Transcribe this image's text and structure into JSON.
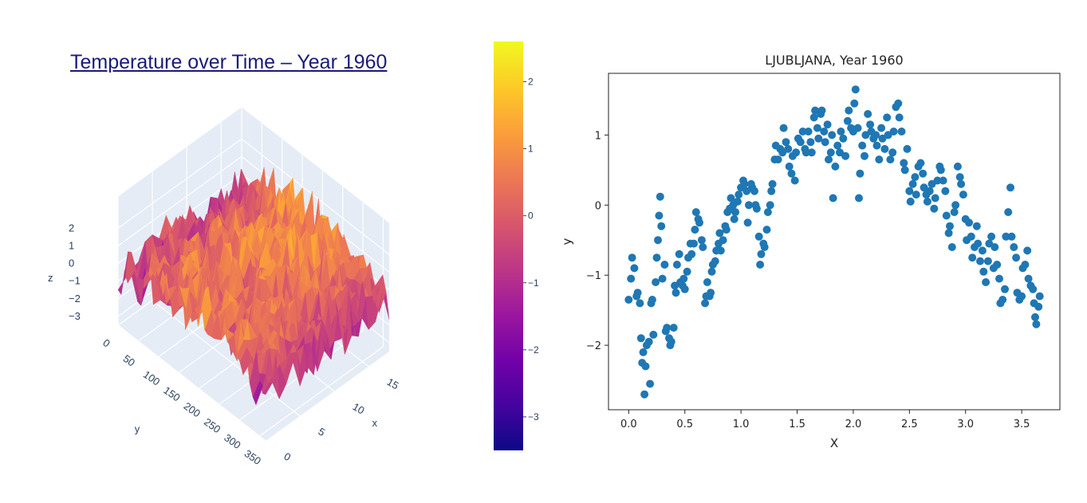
{
  "chart_data": [
    {
      "type": "surface",
      "title": "Temperature over Time – Year 1960",
      "axis_labels": {
        "x": "x",
        "y": "y",
        "z": "z"
      },
      "x_ticks": [
        "0",
        "5",
        "10",
        "15"
      ],
      "y_ticks": [
        "0",
        "50",
        "100",
        "150",
        "200",
        "250",
        "300",
        "350"
      ],
      "z_ticks": [
        "2",
        "1",
        "0",
        "−1",
        "−2",
        "−3"
      ],
      "x_range": [
        0,
        18
      ],
      "y_range": [
        0,
        365
      ],
      "z_range": [
        -3.5,
        2.6
      ],
      "colorscale": "plasma",
      "colors": {
        "plane": "#e5ecf6",
        "grid": "#ffffff"
      }
    },
    {
      "type": "colorbar",
      "range": [
        -3.5,
        2.6
      ],
      "ticks": [
        2,
        1,
        0,
        -1,
        -2,
        -3
      ],
      "tick_labels": [
        "2",
        "1",
        "0",
        "−1",
        "−2",
        "−3"
      ],
      "colorscale": [
        "#0d0887",
        "#46039f",
        "#7201a8",
        "#9c179e",
        "#bd3786",
        "#d8576b",
        "#ed7953",
        "#fb9f3a",
        "#fdca26",
        "#f0f921"
      ]
    },
    {
      "type": "scatter",
      "title": "LJUBLJANA, Year 1960",
      "xlabel": "X",
      "ylabel": "y",
      "xlim": [
        -0.18,
        3.84
      ],
      "ylim": [
        -2.92,
        1.88
      ],
      "x_ticks": [
        0.0,
        0.5,
        1.0,
        1.5,
        2.0,
        2.5,
        3.0,
        3.5
      ],
      "x_tick_labels": [
        "0.0",
        "0.5",
        "1.0",
        "1.5",
        "2.0",
        "2.5",
        "3.0",
        "3.5"
      ],
      "y_ticks": [
        1,
        0,
        -1,
        -2
      ],
      "y_tick_labels": [
        "1",
        "0",
        "−1",
        "−2"
      ],
      "point_color": "#1f77b4",
      "points": [
        [
          0.0,
          -1.35
        ],
        [
          0.02,
          -1.05
        ],
        [
          0.03,
          -0.75
        ],
        [
          0.05,
          -0.9
        ],
        [
          0.07,
          -1.3
        ],
        [
          0.08,
          -1.25
        ],
        [
          0.1,
          -1.4
        ],
        [
          0.11,
          -1.9
        ],
        [
          0.12,
          -2.25
        ],
        [
          0.13,
          -2.1
        ],
        [
          0.14,
          -2.7
        ],
        [
          0.15,
          -2.3
        ],
        [
          0.16,
          -2.0
        ],
        [
          0.18,
          -1.95
        ],
        [
          0.19,
          -2.55
        ],
        [
          0.2,
          -1.4
        ],
        [
          0.21,
          -1.35
        ],
        [
          0.22,
          -1.85
        ],
        [
          0.24,
          -1.1
        ],
        [
          0.25,
          -0.75
        ],
        [
          0.26,
          -0.5
        ],
        [
          0.27,
          -0.15
        ],
        [
          0.28,
          0.12
        ],
        [
          0.29,
          -0.3
        ],
        [
          0.3,
          -1.05
        ],
        [
          0.32,
          -0.85
        ],
        [
          0.33,
          -1.8
        ],
        [
          0.34,
          -1.75
        ],
        [
          0.36,
          -1.9
        ],
        [
          0.37,
          -2.0
        ],
        [
          0.38,
          -1.95
        ],
        [
          0.4,
          -1.75
        ],
        [
          0.41,
          -1.15
        ],
        [
          0.42,
          -1.25
        ],
        [
          0.43,
          -0.85
        ],
        [
          0.45,
          -0.7
        ],
        [
          0.46,
          -1.1
        ],
        [
          0.48,
          -1.15
        ],
        [
          0.49,
          -1.05
        ],
        [
          0.5,
          -1.2
        ],
        [
          0.52,
          -0.95
        ],
        [
          0.53,
          -0.75
        ],
        [
          0.55,
          -0.55
        ],
        [
          0.56,
          -0.7
        ],
        [
          0.58,
          -0.55
        ],
        [
          0.59,
          -0.35
        ],
        [
          0.6,
          -0.1
        ],
        [
          0.62,
          -0.2
        ],
        [
          0.63,
          -0.25
        ],
        [
          0.65,
          -0.5
        ],
        [
          0.66,
          -0.6
        ],
        [
          0.68,
          -1.4
        ],
        [
          0.69,
          -1.3
        ],
        [
          0.7,
          -1.1
        ],
        [
          0.72,
          -1.3
        ],
        [
          0.73,
          -1.25
        ],
        [
          0.74,
          -0.95
        ],
        [
          0.75,
          -0.85
        ],
        [
          0.77,
          -0.8
        ],
        [
          0.78,
          -0.65
        ],
        [
          0.8,
          -0.55
        ],
        [
          0.81,
          -0.4
        ],
        [
          0.82,
          -0.65
        ],
        [
          0.84,
          -0.5
        ],
        [
          0.86,
          -0.3
        ],
        [
          0.87,
          -0.35
        ],
        [
          0.88,
          -0.1
        ],
        [
          0.9,
          -0.05
        ],
        [
          0.91,
          0.1
        ],
        [
          0.93,
          0.0
        ],
        [
          0.94,
          -0.2
        ],
        [
          0.95,
          -0.1
        ],
        [
          0.97,
          0.05
        ],
        [
          0.98,
          0.15
        ],
        [
          1.0,
          0.25
        ],
        [
          1.02,
          0.35
        ],
        [
          1.03,
          0.3
        ],
        [
          1.05,
          0.2
        ],
        [
          1.06,
          -0.25
        ],
        [
          1.07,
          0.0
        ],
        [
          1.09,
          0.3
        ],
        [
          1.1,
          0.25
        ],
        [
          1.12,
          0.2
        ],
        [
          1.13,
          0.0
        ],
        [
          1.14,
          -0.05
        ],
        [
          1.16,
          -0.45
        ],
        [
          1.17,
          -0.85
        ],
        [
          1.18,
          -0.7
        ],
        [
          1.2,
          -0.55
        ],
        [
          1.21,
          -0.6
        ],
        [
          1.23,
          -0.35
        ],
        [
          1.24,
          -0.1
        ],
        [
          1.26,
          0.0
        ],
        [
          1.27,
          0.2
        ],
        [
          1.28,
          0.3
        ],
        [
          1.3,
          0.65
        ],
        [
          1.31,
          0.85
        ],
        [
          1.33,
          0.65
        ],
        [
          1.35,
          0.8
        ],
        [
          1.37,
          0.75
        ],
        [
          1.38,
          1.1
        ],
        [
          1.4,
          0.9
        ],
        [
          1.42,
          0.8
        ],
        [
          1.43,
          0.55
        ],
        [
          1.45,
          0.45
        ],
        [
          1.46,
          0.7
        ],
        [
          1.48,
          0.35
        ],
        [
          1.49,
          0.75
        ],
        [
          1.51,
          0.95
        ],
        [
          1.53,
          0.9
        ],
        [
          1.55,
          1.05
        ],
        [
          1.57,
          0.8
        ],
        [
          1.58,
          0.75
        ],
        [
          1.6,
          1.05
        ],
        [
          1.62,
          0.9
        ],
        [
          1.63,
          0.75
        ],
        [
          1.65,
          1.25
        ],
        [
          1.66,
          1.35
        ],
        [
          1.68,
          1.1
        ],
        [
          1.69,
          0.95
        ],
        [
          1.71,
          1.3
        ],
        [
          1.72,
          1.35
        ],
        [
          1.74,
          1.05
        ],
        [
          1.75,
          0.9
        ],
        [
          1.77,
          1.15
        ],
        [
          1.78,
          0.65
        ],
        [
          1.8,
          0.75
        ],
        [
          1.81,
          1.0
        ],
        [
          1.82,
          0.1
        ],
        [
          1.84,
          0.55
        ],
        [
          1.86,
          0.85
        ],
        [
          1.88,
          0.75
        ],
        [
          1.89,
          1.05
        ],
        [
          1.91,
          0.95
        ],
        [
          1.93,
          0.7
        ],
        [
          1.95,
          1.2
        ],
        [
          1.96,
          1.35
        ],
        [
          1.98,
          1.1
        ],
        [
          2.0,
          1.05
        ],
        [
          2.01,
          1.45
        ],
        [
          2.02,
          1.65
        ],
        [
          2.04,
          1.1
        ],
        [
          2.05,
          0.1
        ],
        [
          2.06,
          0.45
        ],
        [
          2.08,
          0.85
        ],
        [
          2.1,
          0.7
        ],
        [
          2.11,
          1.0
        ],
        [
          2.13,
          1.3
        ],
        [
          2.15,
          1.15
        ],
        [
          2.16,
          1.05
        ],
        [
          2.18,
          0.95
        ],
        [
          2.2,
          1.0
        ],
        [
          2.21,
          0.85
        ],
        [
          2.23,
          0.65
        ],
        [
          2.25,
          1.1
        ],
        [
          2.26,
          0.95
        ],
        [
          2.28,
          0.8
        ],
        [
          2.3,
          1.25
        ],
        [
          2.31,
          1.0
        ],
        [
          2.33,
          0.65
        ],
        [
          2.35,
          0.75
        ],
        [
          2.36,
          1.05
        ],
        [
          2.38,
          1.4
        ],
        [
          2.4,
          1.45
        ],
        [
          2.41,
          1.25
        ],
        [
          2.43,
          1.05
        ],
        [
          2.45,
          0.6
        ],
        [
          2.46,
          0.5
        ],
        [
          2.48,
          0.8
        ],
        [
          2.5,
          0.2
        ],
        [
          2.51,
          0.05
        ],
        [
          2.53,
          0.3
        ],
        [
          2.55,
          0.4
        ],
        [
          2.56,
          0.15
        ],
        [
          2.58,
          0.55
        ],
        [
          2.6,
          0.6
        ],
        [
          2.62,
          0.45
        ],
        [
          2.63,
          0.25
        ],
        [
          2.65,
          0.15
        ],
        [
          2.66,
          0.05
        ],
        [
          2.68,
          0.2
        ],
        [
          2.7,
          0.3
        ],
        [
          2.72,
          -0.05
        ],
        [
          2.73,
          0.1
        ],
        [
          2.75,
          0.35
        ],
        [
          2.77,
          0.55
        ],
        [
          2.78,
          0.5
        ],
        [
          2.8,
          0.35
        ],
        [
          2.82,
          0.2
        ],
        [
          2.83,
          -0.15
        ],
        [
          2.85,
          -0.4
        ],
        [
          2.86,
          -0.3
        ],
        [
          2.88,
          -0.6
        ],
        [
          2.9,
          -0.1
        ],
        [
          2.91,
          0.0
        ],
        [
          2.93,
          0.55
        ],
        [
          2.95,
          0.4
        ],
        [
          2.96,
          0.3
        ],
        [
          2.98,
          0.15
        ],
        [
          3.0,
          -0.2
        ],
        [
          3.01,
          -0.5
        ],
        [
          3.03,
          -0.25
        ],
        [
          3.05,
          -0.45
        ],
        [
          3.06,
          -0.75
        ],
        [
          3.08,
          -0.6
        ],
        [
          3.1,
          -0.3
        ],
        [
          3.11,
          -0.55
        ],
        [
          3.13,
          -0.8
        ],
        [
          3.15,
          -0.65
        ],
        [
          3.16,
          -0.95
        ],
        [
          3.18,
          -1.1
        ],
        [
          3.2,
          -0.8
        ],
        [
          3.21,
          -0.55
        ],
        [
          3.23,
          -0.45
        ],
        [
          3.25,
          -0.9
        ],
        [
          3.26,
          -0.6
        ],
        [
          3.28,
          -0.85
        ],
        [
          3.3,
          -1.05
        ],
        [
          3.31,
          -1.4
        ],
        [
          3.33,
          -1.35
        ],
        [
          3.35,
          -1.2
        ],
        [
          3.36,
          -0.45
        ],
        [
          3.38,
          -0.1
        ],
        [
          3.4,
          0.25
        ],
        [
          3.41,
          -0.45
        ],
        [
          3.43,
          -0.6
        ],
        [
          3.45,
          -0.75
        ],
        [
          3.46,
          -1.25
        ],
        [
          3.48,
          -1.35
        ],
        [
          3.5,
          -1.3
        ],
        [
          3.51,
          -0.9
        ],
        [
          3.53,
          -0.85
        ],
        [
          3.55,
          -0.65
        ],
        [
          3.56,
          -1.05
        ],
        [
          3.58,
          -1.15
        ],
        [
          3.6,
          -1.2
        ],
        [
          3.61,
          -1.4
        ],
        [
          3.62,
          -1.6
        ],
        [
          3.63,
          -1.7
        ],
        [
          3.65,
          -1.45
        ],
        [
          3.66,
          -1.3
        ]
      ]
    }
  ]
}
